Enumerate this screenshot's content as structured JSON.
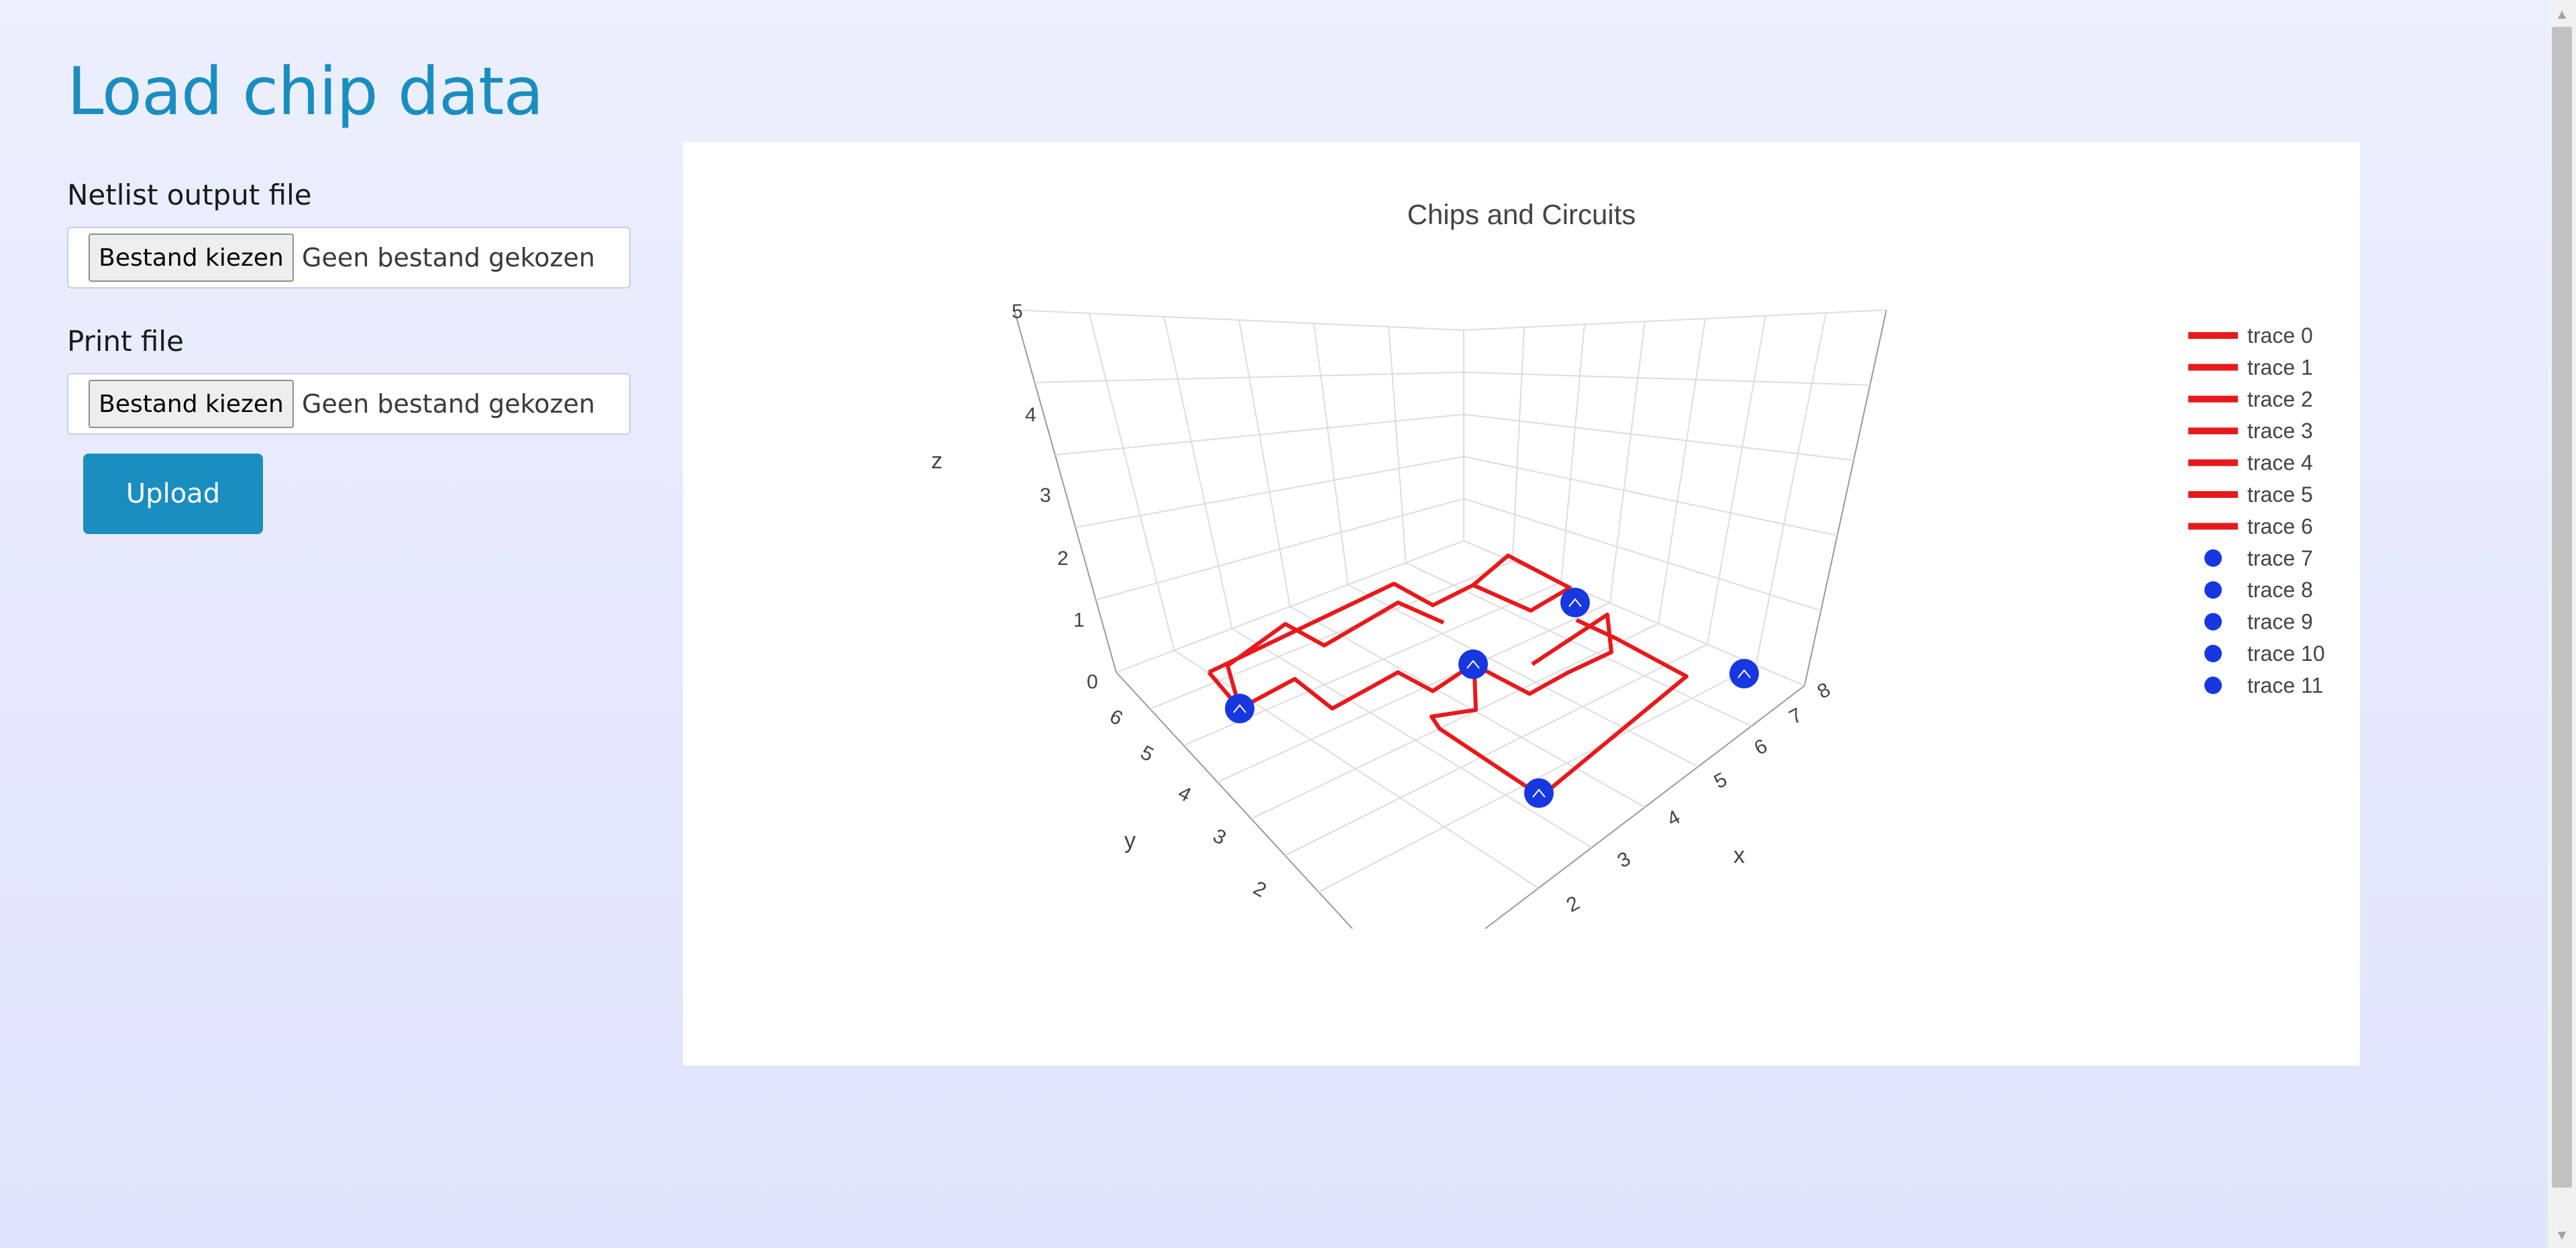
{
  "page": {
    "title": "Load chip data"
  },
  "form": {
    "netlist": {
      "label": "Netlist output file",
      "button_label": "Bestand kiezen",
      "status": "Geen bestand gekozen"
    },
    "print": {
      "label": "Print file",
      "button_label": "Bestand kiezen",
      "status": "Geen bestand gekozen"
    },
    "upload_label": "Upload"
  },
  "chart_data": {
    "type": "scatter3d",
    "title": "Chips and Circuits",
    "axes": {
      "x": {
        "label": "x",
        "ticks": [
          "2",
          "3",
          "4",
          "5",
          "6",
          "7",
          "8"
        ]
      },
      "y": {
        "label": "y",
        "ticks": [
          "2",
          "3",
          "4",
          "5",
          "6"
        ]
      },
      "z": {
        "label": "z",
        "ticks": [
          "0",
          "1",
          "2",
          "3",
          "4",
          "5"
        ]
      }
    },
    "grid": true,
    "legend_position": "right",
    "legend": [
      {
        "name": "trace 0",
        "kind": "line",
        "color": "#e8191b"
      },
      {
        "name": "trace 1",
        "kind": "line",
        "color": "#e8191b"
      },
      {
        "name": "trace 2",
        "kind": "line",
        "color": "#e8191b"
      },
      {
        "name": "trace 3",
        "kind": "line",
        "color": "#e8191b"
      },
      {
        "name": "trace 4",
        "kind": "line",
        "color": "#e8191b"
      },
      {
        "name": "trace 5",
        "kind": "line",
        "color": "#e8191b"
      },
      {
        "name": "trace 6",
        "kind": "line",
        "color": "#e8191b"
      },
      {
        "name": "trace 7",
        "kind": "marker",
        "color": "#1737e0"
      },
      {
        "name": "trace 8",
        "kind": "marker",
        "color": "#1737e0"
      },
      {
        "name": "trace 9",
        "kind": "marker",
        "color": "#1737e0"
      },
      {
        "name": "trace 10",
        "kind": "marker",
        "color": "#1737e0"
      },
      {
        "name": "trace 11",
        "kind": "marker",
        "color": "#1737e0"
      }
    ],
    "line_color": "#e8191b",
    "marker_color": "#1737e0"
  }
}
